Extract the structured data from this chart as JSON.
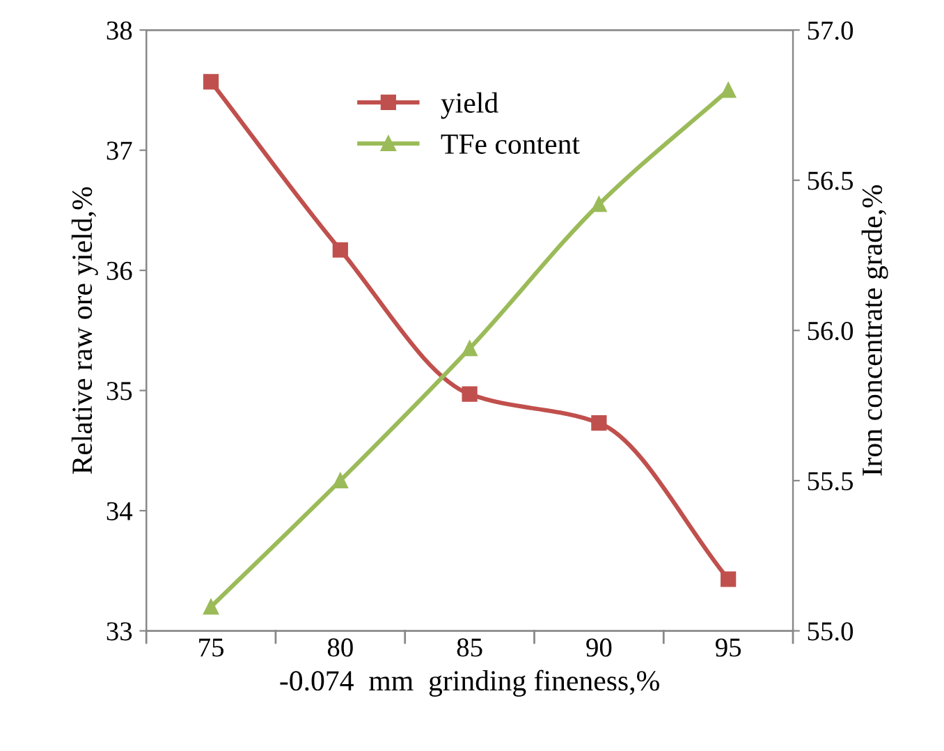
{
  "chart_data": {
    "type": "line",
    "xlabel": "-0.074  mm  grinding fineness,%",
    "ylabel": "Relative raw ore yield,%",
    "y2label": "Iron concentrate grade,%",
    "categories": [
      "75",
      "80",
      "85",
      "90",
      "95"
    ],
    "series": [
      {
        "name": "yield",
        "color": "#c0504d",
        "marker": "square",
        "values": [
          37.57,
          36.17,
          34.97,
          34.73,
          33.43
        ]
      },
      {
        "name": "TFe content",
        "color": "#9bbb59",
        "marker": "triangle",
        "axis": "y2",
        "values": [
          55.08,
          55.5,
          55.94,
          56.42,
          56.8
        ]
      }
    ],
    "ylim": [
      33,
      38
    ],
    "yticks": [
      33,
      34,
      35,
      36,
      37,
      38
    ],
    "y2lim": [
      55.0,
      57.0
    ],
    "y2ticks": [
      {
        "value": 55.0,
        "label": "55.0"
      },
      {
        "value": 55.5,
        "label": "55.5"
      },
      {
        "value": 56.0,
        "label": "56.0"
      },
      {
        "value": 56.5,
        "label": "56.5"
      },
      {
        "value": 57.0,
        "label": "57.0"
      }
    ],
    "grid": false,
    "legend": "top",
    "line_style": "solid"
  }
}
